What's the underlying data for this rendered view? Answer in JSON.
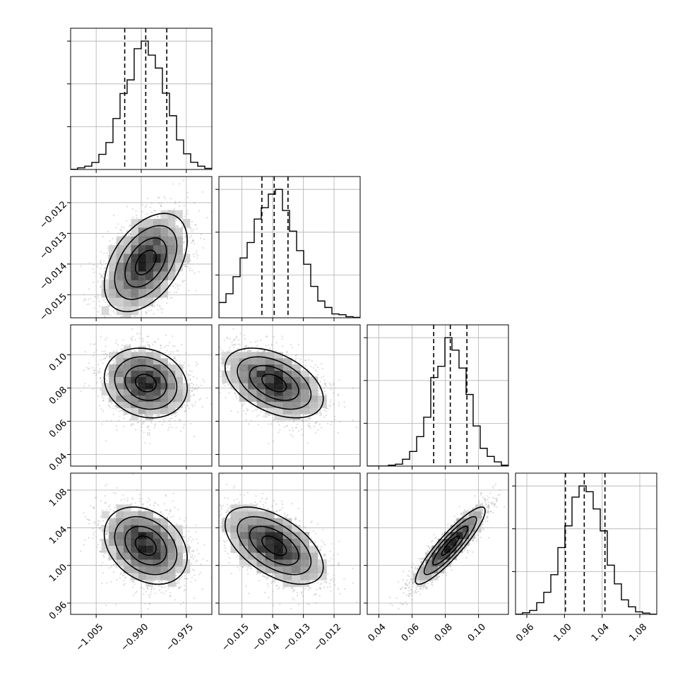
{
  "chart_data": {
    "type": "corner",
    "parameters": [
      {
        "mean": -0.9885,
        "sd": 0.0069,
        "range": [
          -1.0135,
          -0.9665
        ],
        "ticks": [
          -1.005,
          -0.99,
          -0.975
        ],
        "tick_labels": [
          "−1.005",
          "−0.990",
          "−0.975"
        ],
        "quantiles": [
          -0.9955,
          -0.9885,
          -0.9815
        ]
      },
      {
        "mean": -0.01395,
        "sd": 0.0008,
        "range": [
          -0.01575,
          -0.01115
        ],
        "ticks": [
          -0.015,
          -0.014,
          -0.013,
          -0.012
        ],
        "tick_labels": [
          "−0.015",
          "−0.014",
          "−0.013",
          "−0.012"
        ],
        "quantiles": [
          -0.01435,
          -0.01395,
          -0.0135
        ]
      },
      {
        "mean": 0.083,
        "sd": 0.0105,
        "range": [
          0.033,
          0.118
        ],
        "ticks": [
          0.04,
          0.06,
          0.08,
          0.1
        ],
        "tick_labels": [
          "0.04",
          "0.06",
          "0.08",
          "0.10"
        ],
        "quantiles": [
          0.073,
          0.083,
          0.093
        ]
      },
      {
        "mean": 1.021,
        "sd": 0.0205,
        "range": [
          0.948,
          1.098
        ],
        "ticks": [
          0.96,
          1.0,
          1.04,
          1.08
        ],
        "tick_labels": [
          "0.96",
          "1.00",
          "1.04",
          "1.08"
        ],
        "quantiles": [
          1.001,
          1.021,
          1.043
        ]
      }
    ],
    "correlations": [
      [
        1.0,
        0.45,
        -0.15,
        -0.3
      ],
      [
        0.45,
        1.0,
        -0.45,
        -0.55
      ],
      [
        -0.15,
        -0.45,
        1.0,
        0.9
      ],
      [
        -0.3,
        -0.55,
        0.9,
        1.0
      ]
    ],
    "contour_levels_sigma": [
      0.5,
      1.0,
      1.5,
      2.0
    ],
    "histogram_bins": 20,
    "samples": 5000,
    "grid": true,
    "colors": {
      "axes": "#000000",
      "grid": "#b0b0b0",
      "points": "#9a9a9a"
    }
  }
}
